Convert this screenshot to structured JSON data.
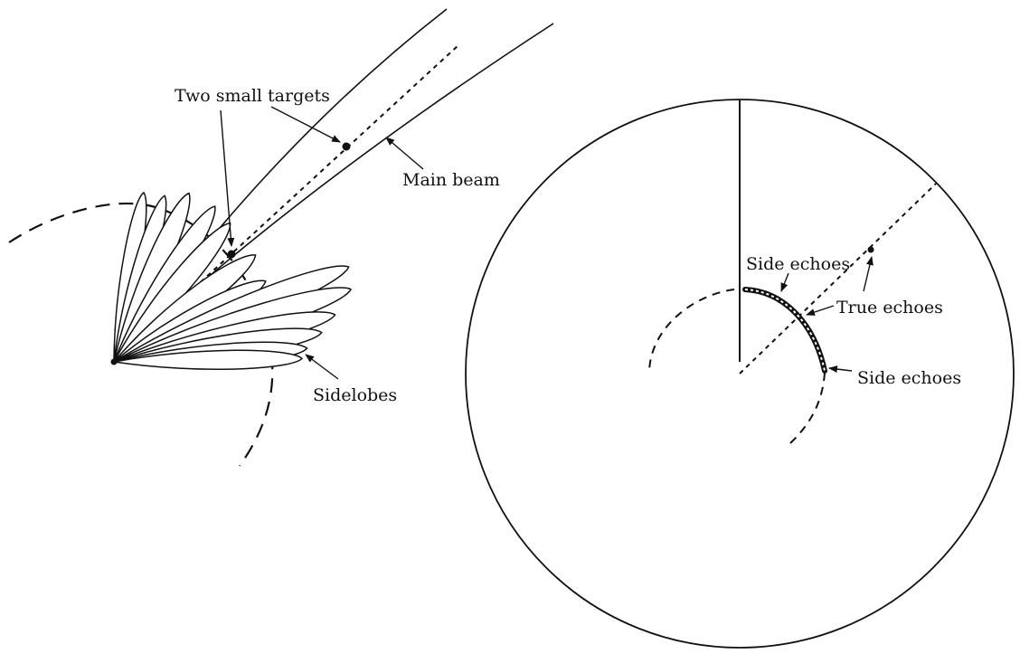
{
  "labels": {
    "two_small_targets": "Two small targets",
    "main_beam": "Main beam",
    "sidelobes": "Sidelobes",
    "side_echoes_upper": "Side echoes",
    "true_echoes": "True echoes",
    "side_echoes_lower": "Side echoes"
  },
  "colors": {
    "ink": "#111111",
    "background": "#ffffff"
  }
}
